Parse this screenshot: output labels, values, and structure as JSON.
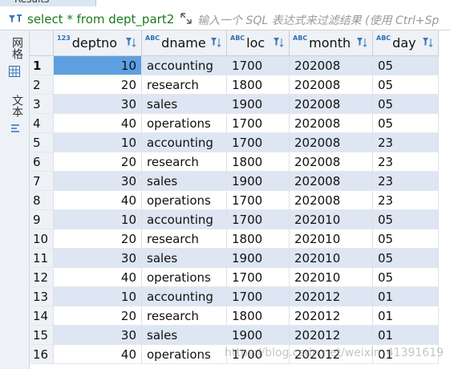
{
  "tab": {
    "title": "Results"
  },
  "filter_bar": {
    "query": "select * from dept_part2",
    "placeholder": "输入一个 SQL 表达式来过滤结果 (使用 Ctrl+Sp"
  },
  "side_toolbar": {
    "grid": "网格",
    "text": "文本"
  },
  "table": {
    "columns": [
      {
        "name": "deptno",
        "type_icon": "123"
      },
      {
        "name": "dname",
        "type_icon": "ABC"
      },
      {
        "name": "loc",
        "type_icon": "ABC"
      },
      {
        "name": "month",
        "type_icon": "ABC"
      },
      {
        "name": "day",
        "type_icon": "ABC"
      }
    ],
    "row_numbers": [
      "1",
      "2",
      "3",
      "4",
      "5",
      "6",
      "7",
      "8",
      "9",
      "10",
      "11",
      "12",
      "13",
      "14",
      "15",
      "16"
    ],
    "rows": [
      [
        "10",
        "accounting",
        "1700",
        "202008",
        "05"
      ],
      [
        "20",
        "research",
        "1800",
        "202008",
        "05"
      ],
      [
        "30",
        "sales",
        "1900",
        "202008",
        "05"
      ],
      [
        "40",
        "operations",
        "1700",
        "202008",
        "05"
      ],
      [
        "10",
        "accounting",
        "1700",
        "202008",
        "23"
      ],
      [
        "20",
        "research",
        "1800",
        "202008",
        "23"
      ],
      [
        "30",
        "sales",
        "1900",
        "202008",
        "23"
      ],
      [
        "40",
        "operations",
        "1700",
        "202008",
        "23"
      ],
      [
        "10",
        "accounting",
        "1700",
        "202010",
        "05"
      ],
      [
        "20",
        "research",
        "1800",
        "202010",
        "05"
      ],
      [
        "30",
        "sales",
        "1900",
        "202010",
        "05"
      ],
      [
        "40",
        "operations",
        "1700",
        "202010",
        "05"
      ],
      [
        "10",
        "accounting",
        "1700",
        "202012",
        "01"
      ],
      [
        "20",
        "research",
        "1800",
        "202012",
        "01"
      ],
      [
        "30",
        "sales",
        "1900",
        "202012",
        "01"
      ],
      [
        "40",
        "operations",
        "1700",
        "202012",
        "01"
      ]
    ]
  },
  "watermark": "https://blog.csdn.net/weixin_41391619"
}
